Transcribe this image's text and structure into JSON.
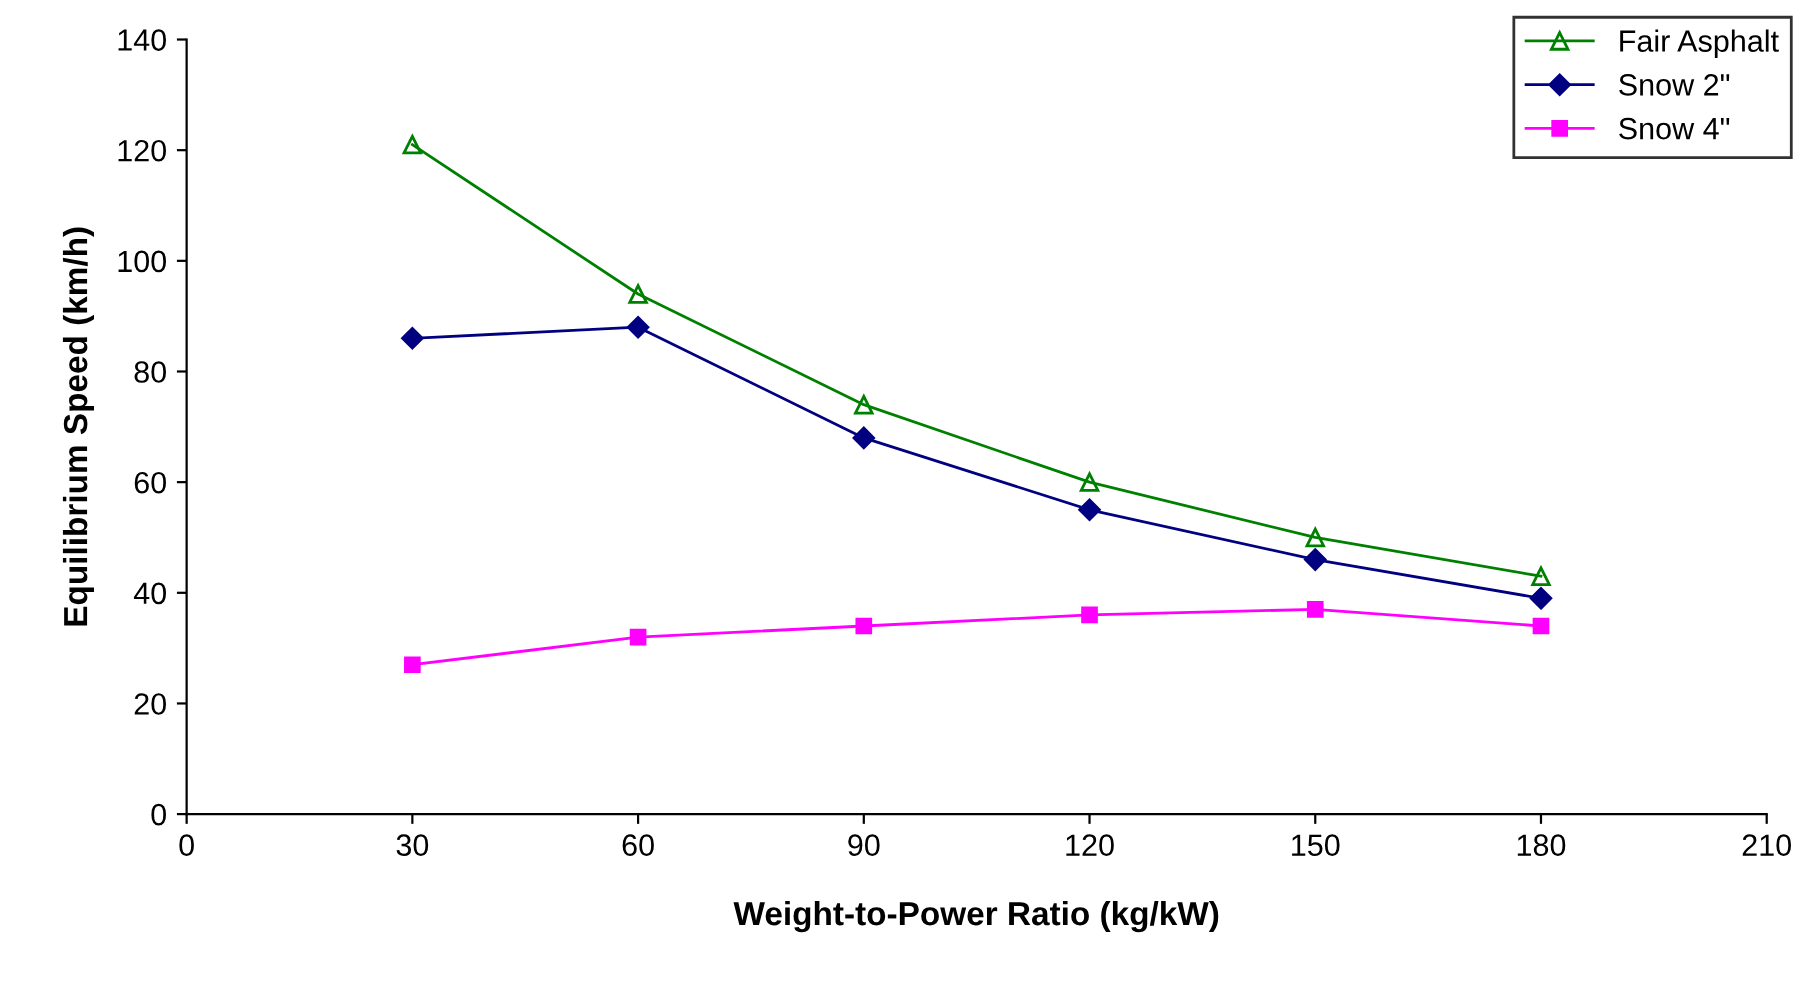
{
  "chart_data": {
    "type": "line",
    "xlabel": "Weight-to-Power Ratio (kg/kW)",
    "ylabel": "Equilibrium Speed (km/h)",
    "x": [
      30,
      60,
      90,
      120,
      150,
      180
    ],
    "series": [
      {
        "name": "Fair Asphalt",
        "color": "#008000",
        "marker": "triangle",
        "values": [
          121,
          94,
          74,
          60,
          50,
          43
        ]
      },
      {
        "name": "Snow 2\"",
        "color": "#000080",
        "marker": "diamond",
        "values": [
          86,
          88,
          68,
          55,
          46,
          39
        ]
      },
      {
        "name": "Snow 4\"",
        "color": "#ff00ff",
        "marker": "square",
        "values": [
          27,
          32,
          34,
          36,
          37,
          34
        ]
      }
    ],
    "xlim": [
      0,
      210
    ],
    "xticks": [
      0,
      30,
      60,
      90,
      120,
      150,
      180,
      210
    ],
    "ylim": [
      0,
      140
    ],
    "yticks": [
      0,
      20,
      40,
      60,
      80,
      100,
      120,
      140
    ],
    "grid": false,
    "legend": "top right",
    "line_style": "solid"
  }
}
